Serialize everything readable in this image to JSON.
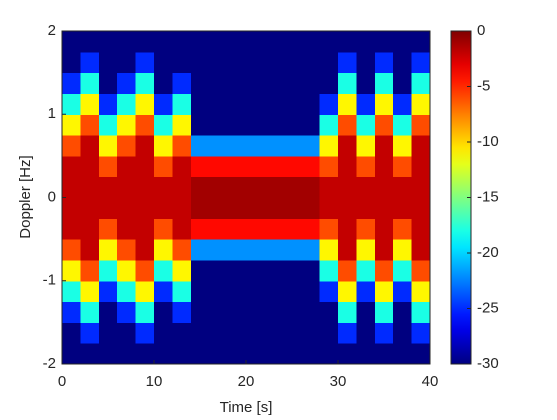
{
  "chart_data": {
    "type": "heatmap",
    "colormap": "jet",
    "xlabel": "Time [s]",
    "ylabel": "Doppler [Hz]",
    "x": [
      1,
      3,
      5,
      7,
      9,
      11,
      13,
      15,
      17,
      19,
      21,
      23,
      25,
      27,
      29,
      31,
      33,
      35,
      37,
      39
    ],
    "y": [
      -1.875,
      -1.625,
      -1.375,
      -1.125,
      -0.875,
      -0.625,
      -0.375,
      -0.125,
      0.125,
      0.375,
      0.625,
      0.875,
      1.125,
      1.375,
      1.625,
      1.875
    ],
    "xlim": [
      0,
      40
    ],
    "ylim": [
      -2,
      2
    ],
    "xticks": [
      0,
      10,
      20,
      30,
      40
    ],
    "yticks": [
      -2,
      -1,
      0,
      1,
      2
    ],
    "clim": [
      -30,
      0
    ],
    "cticks": [
      0,
      -5,
      -10,
      -15,
      -20,
      -25,
      -30
    ],
    "z": [
      [
        -30,
        -30,
        -30,
        -30,
        -30,
        -30,
        -30,
        -30,
        -30,
        -30,
        -30,
        -30,
        -30,
        -30,
        -30,
        -30,
        -30,
        -30,
        -30,
        -30
      ],
      [
        -30,
        -25,
        -30,
        -30,
        -25,
        -30,
        -30,
        -30,
        -30,
        -30,
        -30,
        -30,
        -30,
        -30,
        -30,
        -25,
        -30,
        -25,
        -30,
        -25
      ],
      [
        -25,
        -18,
        -30,
        -25,
        -18,
        -30,
        -25,
        -30,
        -30,
        -30,
        -30,
        -30,
        -30,
        -30,
        -30,
        -18,
        -30,
        -18,
        -30,
        -18
      ],
      [
        -18,
        -11,
        -25,
        -18,
        -11,
        -25,
        -18,
        -30,
        -30,
        -30,
        -30,
        -30,
        -30,
        -30,
        -25,
        -11,
        -25,
        -11,
        -25,
        -11
      ],
      [
        -11,
        -6,
        -18,
        -11,
        -6,
        -18,
        -11,
        -30,
        -30,
        -30,
        -30,
        -30,
        -30,
        -30,
        -18,
        -6,
        -18,
        -6,
        -18,
        -6
      ],
      [
        -6,
        -2,
        -11,
        -6,
        -2,
        -11,
        -6,
        -22,
        -22,
        -22,
        -22,
        -22,
        -22,
        -22,
        -11,
        -2,
        -11,
        -2,
        -11,
        -2
      ],
      [
        -2,
        -2,
        -6,
        -2,
        -2,
        -6,
        -2,
        -4,
        -4,
        -4,
        -4,
        -4,
        -4,
        -4,
        -6,
        -2,
        -6,
        -2,
        -6,
        -2
      ],
      [
        -2,
        -2,
        -2,
        -2,
        -2,
        -2,
        -2,
        -1,
        -1,
        -1,
        -1,
        -1,
        -1,
        -1,
        -2,
        -2,
        -2,
        -2,
        -2,
        -2
      ],
      [
        -2,
        -2,
        -2,
        -2,
        -2,
        -2,
        -2,
        -1,
        -1,
        -1,
        -1,
        -1,
        -1,
        -1,
        -2,
        -2,
        -2,
        -2,
        -2,
        -2
      ],
      [
        -2,
        -2,
        -6,
        -2,
        -2,
        -6,
        -2,
        -4,
        -4,
        -4,
        -4,
        -4,
        -4,
        -4,
        -6,
        -2,
        -6,
        -2,
        -6,
        -2
      ],
      [
        -6,
        -2,
        -11,
        -6,
        -2,
        -11,
        -6,
        -22,
        -22,
        -22,
        -22,
        -22,
        -22,
        -22,
        -11,
        -2,
        -11,
        -2,
        -11,
        -2
      ],
      [
        -11,
        -6,
        -18,
        -11,
        -6,
        -18,
        -11,
        -30,
        -30,
        -30,
        -30,
        -30,
        -30,
        -30,
        -18,
        -6,
        -18,
        -6,
        -18,
        -6
      ],
      [
        -18,
        -11,
        -25,
        -18,
        -11,
        -25,
        -18,
        -30,
        -30,
        -30,
        -30,
        -30,
        -30,
        -30,
        -25,
        -11,
        -25,
        -11,
        -25,
        -11
      ],
      [
        -25,
        -18,
        -30,
        -25,
        -18,
        -30,
        -25,
        -30,
        -30,
        -30,
        -30,
        -30,
        -30,
        -30,
        -30,
        -18,
        -30,
        -18,
        -30,
        -18
      ],
      [
        -30,
        -25,
        -30,
        -30,
        -25,
        -30,
        -30,
        -30,
        -30,
        -30,
        -30,
        -30,
        -30,
        -30,
        -30,
        -25,
        -30,
        -25,
        -30,
        -25
      ],
      [
        -30,
        -30,
        -30,
        -30,
        -30,
        -30,
        -30,
        -30,
        -30,
        -30,
        -30,
        -30,
        -30,
        -30,
        -30,
        -30,
        -30,
        -30,
        -30,
        -30
      ]
    ]
  }
}
